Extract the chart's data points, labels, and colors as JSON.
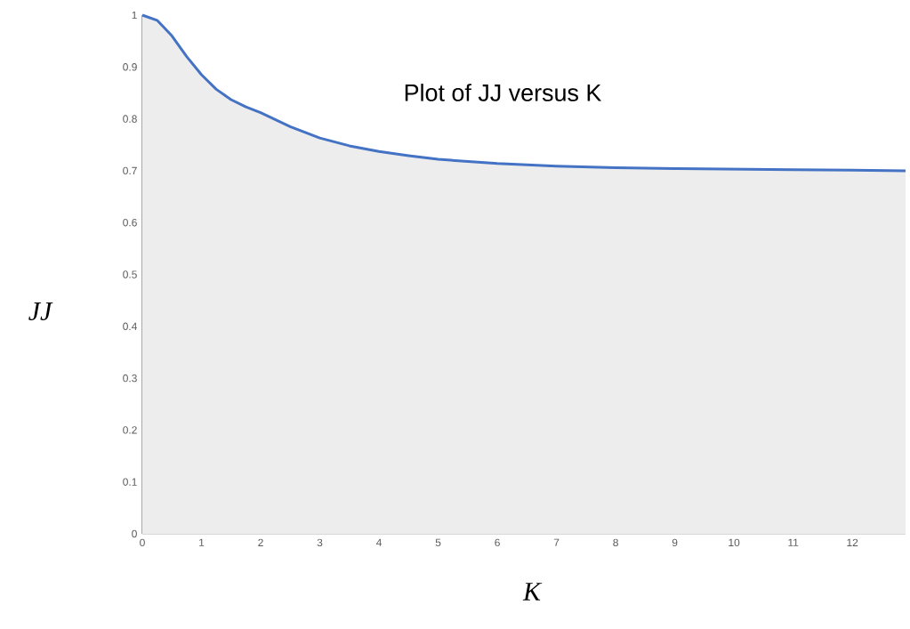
{
  "chart_data": {
    "type": "area",
    "title": "Plot of JJ versus K",
    "xlabel": "K",
    "ylabel": "JJ",
    "x": [
      0,
      0.25,
      0.5,
      0.75,
      1,
      1.25,
      1.5,
      1.75,
      2,
      2.5,
      3,
      3.5,
      4,
      4.5,
      5,
      6,
      7,
      8,
      9,
      10,
      11,
      12,
      12.9
    ],
    "series": [
      {
        "color": "#4472c4",
        "values": [
          1.0,
          0.99,
          0.96,
          0.92,
          0.885,
          0.857,
          0.837,
          0.823,
          0.812,
          0.785,
          0.763,
          0.748,
          0.737,
          0.729,
          0.722,
          0.714,
          0.709,
          0.706,
          0.704,
          0.703,
          0.702,
          0.701,
          0.7
        ]
      }
    ],
    "xlim": [
      0,
      12.9
    ],
    "ylim": [
      0,
      1
    ],
    "xticks": [
      0,
      1,
      2,
      3,
      4,
      5,
      6,
      7,
      8,
      9,
      10,
      11,
      12
    ],
    "yticks": [
      0,
      0.1,
      0.2,
      0.3,
      0.4,
      0.5,
      0.6,
      0.7,
      0.8,
      0.9,
      1
    ],
    "grid": false
  }
}
